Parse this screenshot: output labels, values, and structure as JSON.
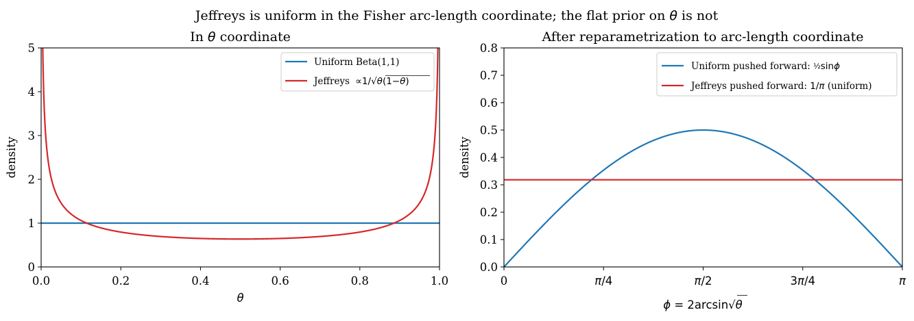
{
  "suptitle": {
    "pre": "Jeffreys is uniform in the Fisher arc-length coordinate; the flat prior on ",
    "sym": "θ",
    "post": " is not"
  },
  "chart_data": [
    {
      "type": "line",
      "title": {
        "pre": "In ",
        "sym": "θ",
        "post": " coordinate"
      },
      "xlabel": "θ",
      "ylabel": "density",
      "xlim": [
        0,
        1
      ],
      "ylim": [
        0,
        5
      ],
      "xticks": [
        0,
        0.2,
        0.4,
        0.6,
        0.8,
        1.0
      ],
      "xticklabels": [
        "0.0",
        "0.2",
        "0.4",
        "0.6",
        "0.8",
        "1.0"
      ],
      "yticks": [
        0,
        1,
        2,
        3,
        4,
        5
      ],
      "yticklabels": [
        "0",
        "1",
        "2",
        "3",
        "4",
        "5"
      ],
      "grid": false,
      "legend_loc": "upper right",
      "series": [
        {
          "name": "Uniform Beta(1,1)",
          "color": "#1f77b4",
          "function": "uniform",
          "points": [
            [
              0,
              1
            ],
            [
              0.25,
              1
            ],
            [
              0.5,
              1
            ],
            [
              0.75,
              1
            ],
            [
              1,
              1
            ]
          ]
        },
        {
          "name": "Jeffreys ∝1/√θ(1−θ)",
          "color": "#d62728",
          "function": "jeffreys_theta",
          "points": [
            [
              0.01,
              3.2
            ],
            [
              0.05,
              1.46
            ],
            [
              0.1,
              1.06
            ],
            [
              0.2,
              0.8
            ],
            [
              0.3,
              0.69
            ],
            [
              0.4,
              0.65
            ],
            [
              0.5,
              0.64
            ],
            [
              0.6,
              0.65
            ],
            [
              0.7,
              0.69
            ],
            [
              0.8,
              0.8
            ],
            [
              0.9,
              1.06
            ],
            [
              0.95,
              1.46
            ],
            [
              0.99,
              3.2
            ]
          ]
        }
      ]
    },
    {
      "type": "line",
      "title": {
        "pre": "After reparametrization to arc-length coordinate",
        "sym": "",
        "post": ""
      },
      "xlabel": "ϕ = 2arcsin√θ",
      "ylabel": "density",
      "xlim": [
        0,
        3.14159
      ],
      "ylim": [
        0,
        0.8
      ],
      "xticks": [
        0,
        0.7854,
        1.5708,
        2.3562,
        3.14159
      ],
      "xticklabels": [
        "0",
        "π/4",
        "π/2",
        "3π/4",
        "π"
      ],
      "yticks": [
        0,
        0.1,
        0.2,
        0.3,
        0.4,
        0.5,
        0.6,
        0.7,
        0.8
      ],
      "yticklabels": [
        "0.0",
        "0.1",
        "0.2",
        "0.3",
        "0.4",
        "0.5",
        "0.6",
        "0.7",
        "0.8"
      ],
      "grid": false,
      "legend_loc": "upper right",
      "series": [
        {
          "name": "Uniform pushed forward: ½sinϕ",
          "color": "#1f77b4",
          "function": "half_sin",
          "points": [
            [
              0,
              0
            ],
            [
              0.7854,
              0.354
            ],
            [
              1.5708,
              0.5
            ],
            [
              2.3562,
              0.354
            ],
            [
              3.14159,
              0
            ]
          ]
        },
        {
          "name": "Jeffreys pushed forward: 1/π (uniform)",
          "color": "#d62728",
          "function": "inv_pi",
          "points": [
            [
              0,
              0.318
            ],
            [
              1.5708,
              0.318
            ],
            [
              3.14159,
              0.318
            ]
          ]
        }
      ]
    }
  ]
}
